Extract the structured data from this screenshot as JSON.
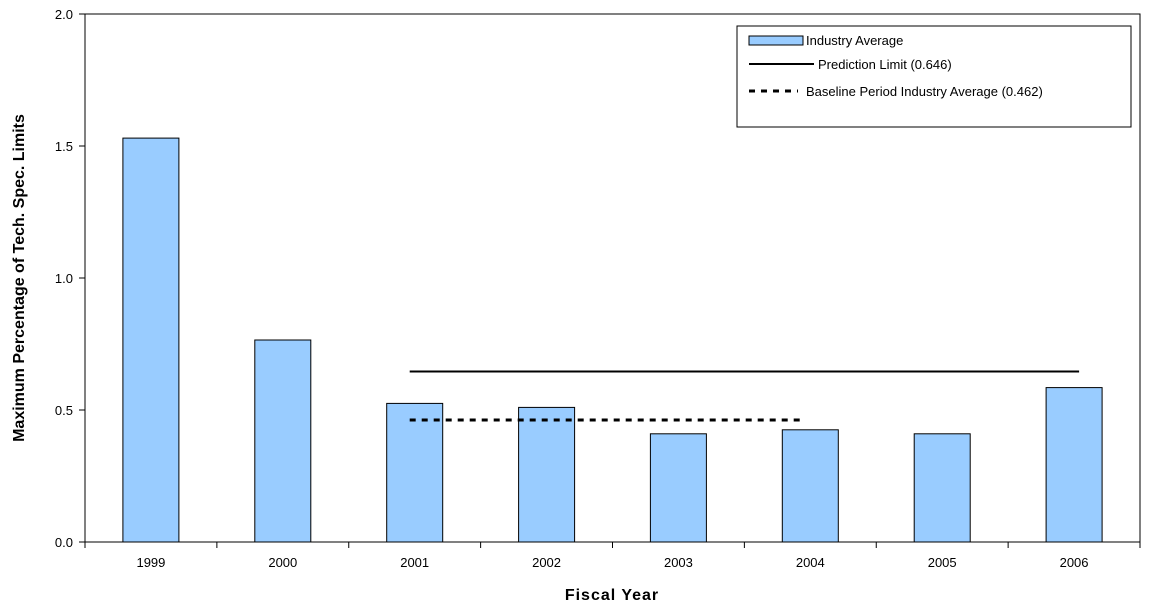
{
  "chart_data": {
    "type": "bar",
    "categories": [
      "1999",
      "2000",
      "2001",
      "2002",
      "2003",
      "2004",
      "2005",
      "2006"
    ],
    "series": [
      {
        "name": "Industry Average",
        "values": [
          1.53,
          0.765,
          0.525,
          0.51,
          0.41,
          0.425,
          0.41,
          0.585
        ],
        "color": "#99ccff"
      }
    ],
    "reference_lines": [
      {
        "name": "Prediction Limit (0.646)",
        "value": 0.646,
        "from": "2001",
        "to": "2006",
        "style": "solid"
      },
      {
        "name": "Baseline Period Industry Average (0.462)",
        "value": 0.462,
        "from": "2001",
        "to": "2004",
        "style": "dashed"
      }
    ],
    "xlabel": "Fiscal Year",
    "ylabel": "Maximum Percentage of Tech. Spec. Limits",
    "ylim": [
      0,
      2.0
    ],
    "yticks": [
      "0.0",
      "0.5",
      "1.0",
      "1.5",
      "2.0"
    ],
    "ytick_values": [
      0,
      0.5,
      1.0,
      1.5,
      2.0
    ],
    "grid": false,
    "legend_position": "top-right"
  }
}
